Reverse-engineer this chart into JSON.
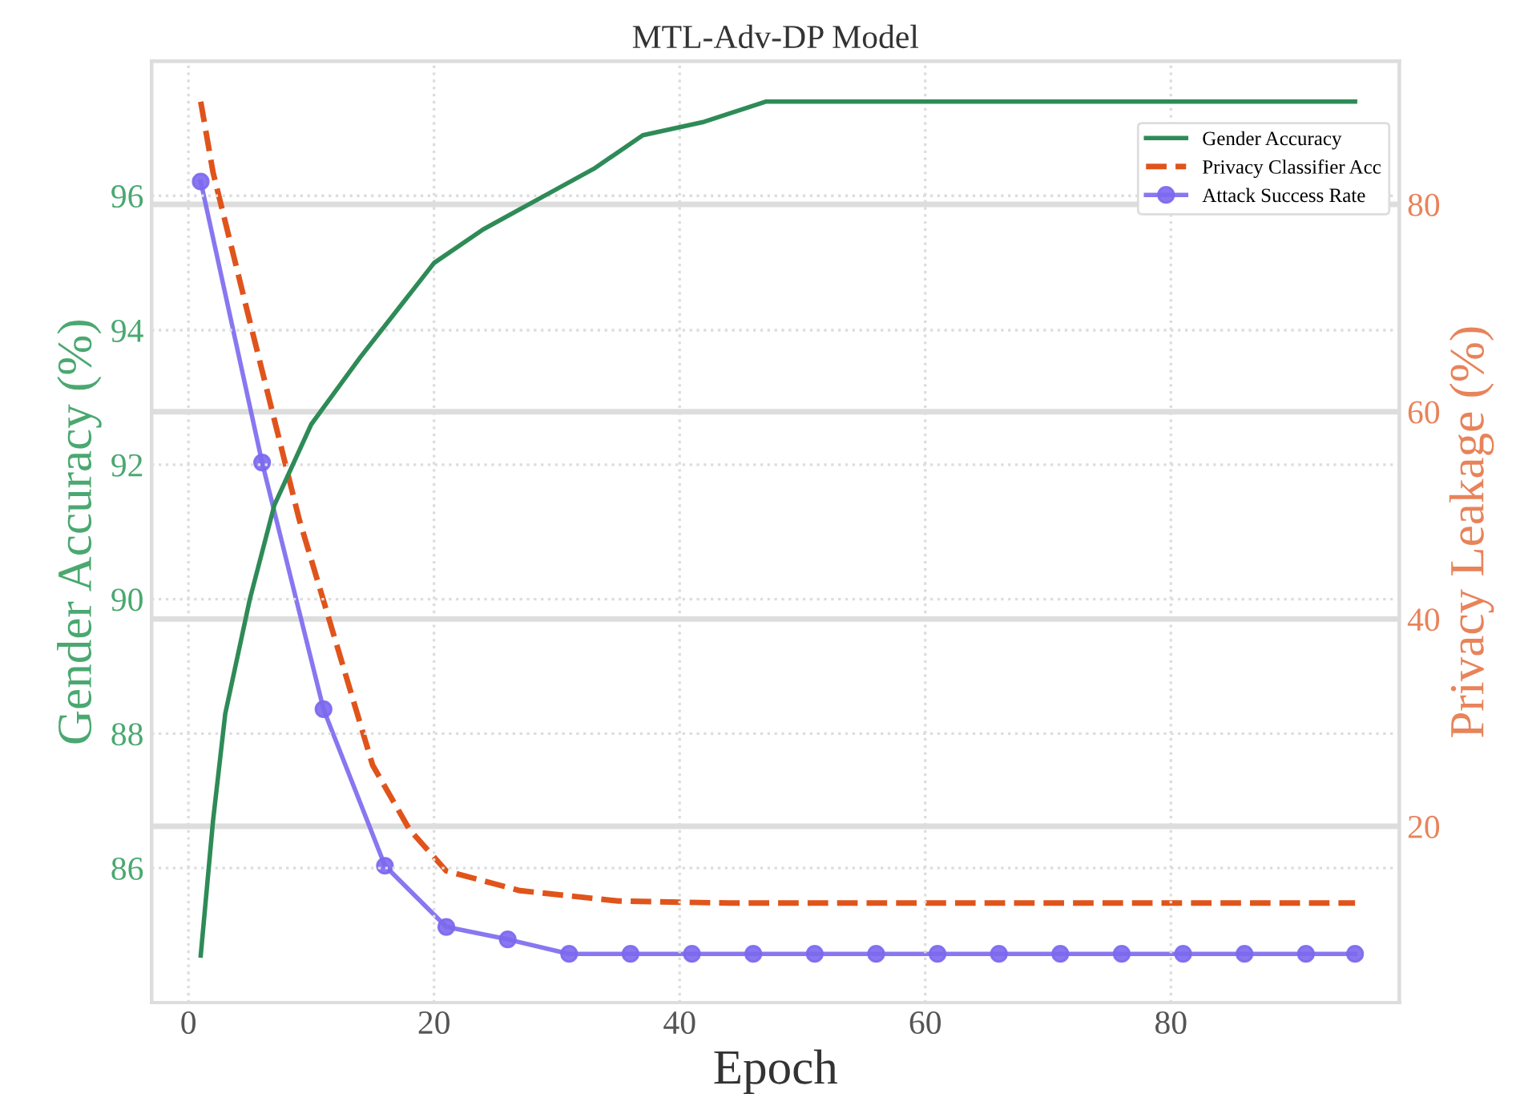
{
  "chart_data": {
    "type": "line",
    "title": "MTL-Adv-DP Model",
    "xlabel": "Epoch",
    "ylabel": "Gender Accuracy (%)",
    "y2label": "Privacy Leakage (%)",
    "xlim": [
      -3,
      98.6
    ],
    "xticks": [
      0,
      20,
      40,
      60,
      80
    ],
    "ylim": [
      84,
      98
    ],
    "yticks": [
      86,
      88,
      90,
      92,
      94,
      96
    ],
    "y2lim": [
      3,
      93.8
    ],
    "y2ticks": [
      20,
      40,
      60,
      80
    ],
    "grid": true,
    "legend": "top right",
    "series": [
      {
        "name": "Gender Accuracy",
        "color": "#2e8b57",
        "line_style": "solid",
        "marker": "none",
        "x": [
          1,
          2,
          3,
          5,
          7,
          10,
          14,
          20,
          24,
          28,
          33,
          37,
          42,
          47,
          95
        ],
        "values": [
          84.7,
          86.7,
          88.3,
          90.0,
          91.4,
          92.6,
          93.6,
          95.0,
          95.5,
          95.9,
          96.4,
          96.9,
          97.1,
          97.4,
          97.4
        ]
      },
      {
        "name": "Privacy Classifier Acc",
        "color": "#e0541b",
        "line_style": "dashed",
        "marker": "none",
        "axis": "y2",
        "x": [
          1,
          2,
          5,
          9,
          12,
          15,
          18,
          21,
          27,
          35,
          44,
          95
        ],
        "values": [
          89.9,
          83.1,
          68.7,
          49.7,
          37.8,
          25.9,
          19.7,
          15.7,
          13.8,
          12.8,
          12.6,
          12.6
        ]
      },
      {
        "name": "Attack Success Rate",
        "color": "#7b68ee",
        "line_style": "solid",
        "marker": "circle",
        "axis": "y2",
        "x": [
          1,
          6,
          11,
          16,
          21,
          26,
          31,
          36,
          41,
          46,
          51,
          56,
          61,
          66,
          71,
          76,
          81,
          86,
          91,
          95
        ],
        "values": [
          82.2,
          55.1,
          31.3,
          16.2,
          10.3,
          9.1,
          7.7,
          7.7,
          7.7,
          7.7,
          7.7,
          7.7,
          7.7,
          7.7,
          7.7,
          7.7,
          7.7,
          7.7,
          7.7,
          7.7
        ]
      }
    ]
  }
}
